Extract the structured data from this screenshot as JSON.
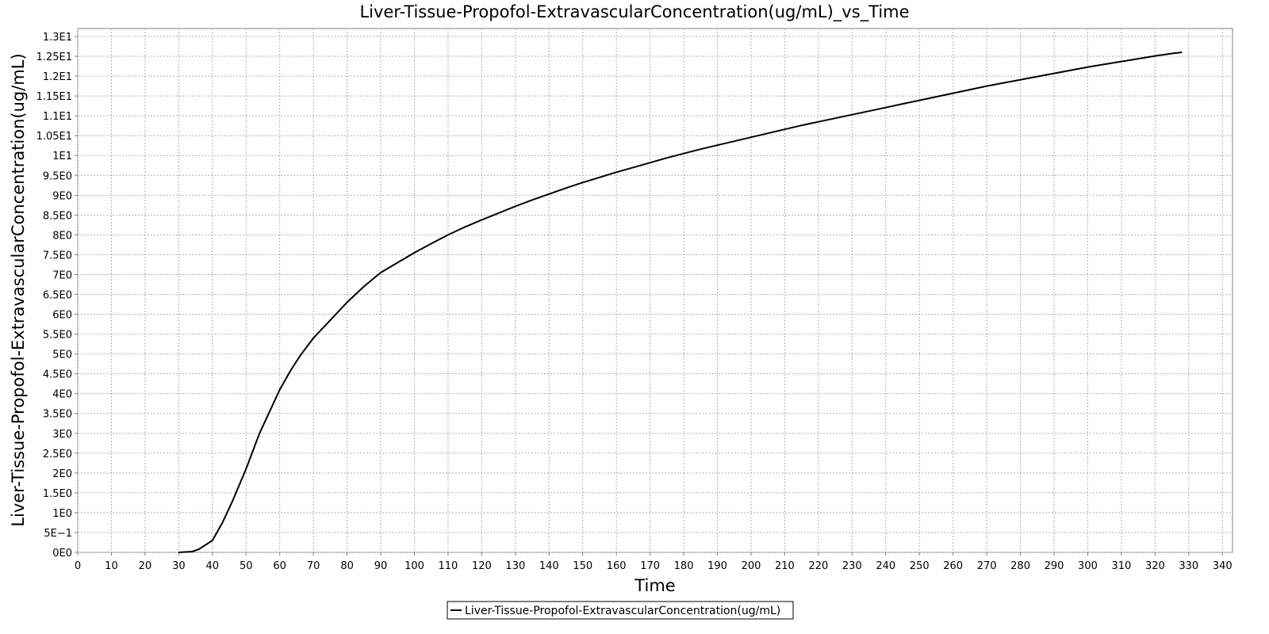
{
  "chart_data": {
    "type": "line",
    "title": "Liver-Tissue-Propofol-ExtravascularConcentration(ug/mL)_vs_Time",
    "xlabel": "Time",
    "ylabel": "Liver-Tissue-Propofol-ExtravascularConcentration(ug/mL)",
    "xlim": [
      0,
      343
    ],
    "ylim": [
      0,
      13.2
    ],
    "x_ticks": [
      0,
      10,
      20,
      30,
      40,
      50,
      60,
      70,
      80,
      90,
      100,
      110,
      120,
      130,
      140,
      150,
      160,
      170,
      180,
      190,
      200,
      210,
      220,
      230,
      240,
      250,
      260,
      270,
      280,
      290,
      300,
      310,
      320,
      330,
      340
    ],
    "x_tick_labels": [
      "0",
      "10",
      "20",
      "30",
      "40",
      "50",
      "60",
      "70",
      "80",
      "90",
      "100",
      "110",
      "120",
      "130",
      "140",
      "150",
      "160",
      "170",
      "180",
      "190",
      "200",
      "210",
      "220",
      "230",
      "240",
      "250",
      "260",
      "270",
      "280",
      "290",
      "300",
      "310",
      "320",
      "330",
      "340"
    ],
    "y_ticks": [
      0,
      0.5,
      1,
      1.5,
      2,
      2.5,
      3,
      3.5,
      4,
      4.5,
      5,
      5.5,
      6,
      6.5,
      7,
      7.5,
      8,
      8.5,
      9,
      9.5,
      10,
      10.5,
      11,
      11.5,
      12,
      12.5,
      13
    ],
    "y_tick_labels": [
      "0E0",
      "5E−1",
      "1E0",
      "1.5E0",
      "2E0",
      "2.5E0",
      "3E0",
      "3.5E0",
      "4E0",
      "4.5E0",
      "5E0",
      "5.5E0",
      "6E0",
      "6.5E0",
      "7E0",
      "7.5E0",
      "8E0",
      "8.5E0",
      "9E0",
      "9.5E0",
      "1E1",
      "1.05E1",
      "1.1E1",
      "1.15E1",
      "1.2E1",
      "1.25E1",
      "1.3E1"
    ],
    "grid": true,
    "legend_position": "bottom-center",
    "series": [
      {
        "name": "Liver-Tissue-Propofol-ExtravascularConcentration(ug/mL)",
        "color": "#000000",
        "x": [
          30,
          34,
          36,
          40,
          43,
          46,
          50,
          54,
          57,
          60,
          63,
          66,
          70,
          75,
          80,
          85,
          90,
          95,
          100,
          105,
          110,
          115,
          120,
          125,
          130,
          135,
          140,
          145,
          150,
          155,
          160,
          165,
          170,
          175,
          180,
          185,
          190,
          195,
          200,
          205,
          210,
          215,
          220,
          225,
          230,
          235,
          240,
          245,
          250,
          255,
          260,
          265,
          270,
          275,
          280,
          285,
          290,
          295,
          300,
          305,
          310,
          315,
          320,
          325,
          328
        ],
        "y": [
          0,
          0.02,
          0.08,
          0.3,
          0.75,
          1.3,
          2.1,
          3.0,
          3.55,
          4.1,
          4.55,
          4.95,
          5.4,
          5.85,
          6.3,
          6.7,
          7.05,
          7.3,
          7.55,
          7.78,
          8.0,
          8.2,
          8.38,
          8.55,
          8.72,
          8.88,
          9.03,
          9.18,
          9.32,
          9.45,
          9.58,
          9.7,
          9.82,
          9.94,
          10.05,
          10.16,
          10.26,
          10.36,
          10.46,
          10.56,
          10.66,
          10.76,
          10.85,
          10.94,
          11.03,
          11.12,
          11.21,
          11.3,
          11.39,
          11.48,
          11.57,
          11.66,
          11.75,
          11.83,
          11.91,
          11.99,
          12.07,
          12.15,
          12.23,
          12.3,
          12.37,
          12.44,
          12.51,
          12.57,
          12.6
        ]
      }
    ]
  }
}
